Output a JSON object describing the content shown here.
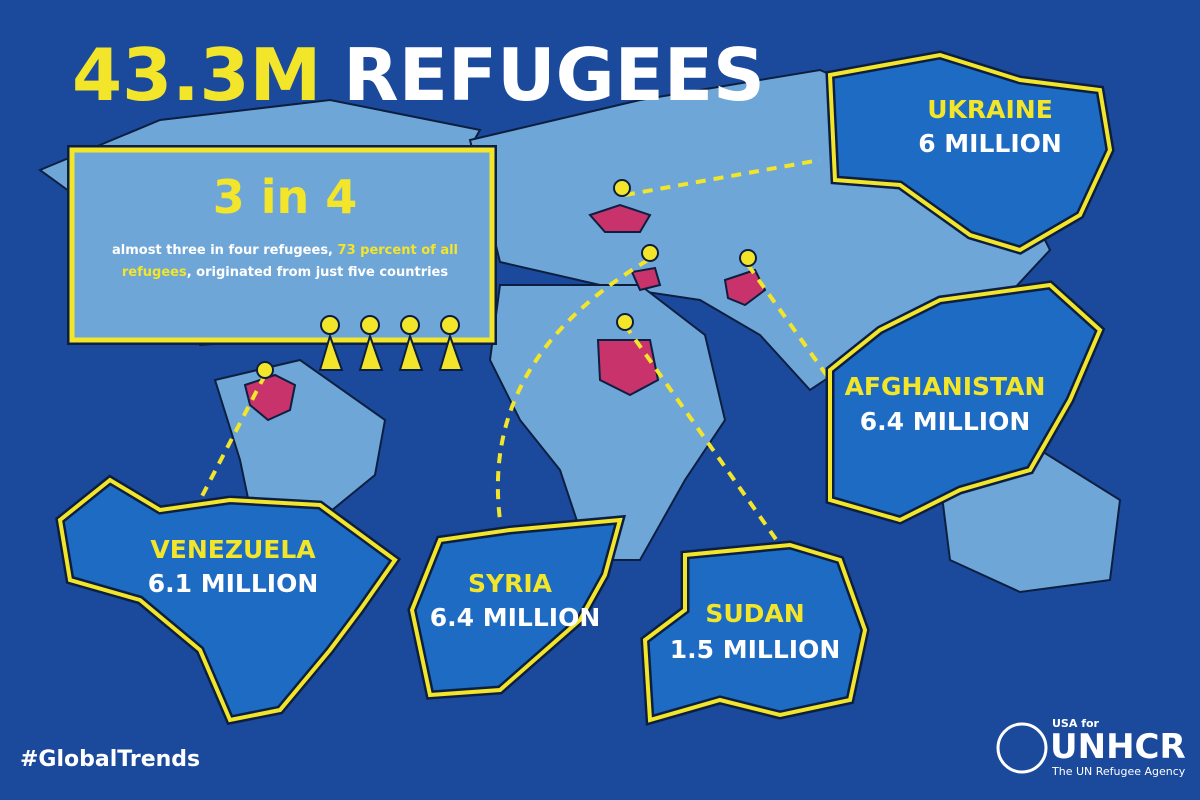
{
  "title": {
    "number": "43.3M",
    "word": "REFUGEES"
  },
  "callout": {
    "headline": "3 in 4",
    "text_before": "almost three in four refugees,",
    "highlight": "73 percent of all refugees",
    "text_after": ", originated from just five countries"
  },
  "countries": [
    {
      "name": "UKRAINE",
      "count": "6 MILLION"
    },
    {
      "name": "AFGHANISTAN",
      "count": "6.4 MILLION"
    },
    {
      "name": "VENEZUELA",
      "count": "6.1 MILLION"
    },
    {
      "name": "SYRIA",
      "count": "6.4 MILLION"
    },
    {
      "name": "SUDAN",
      "count": "1.5 MILLION"
    }
  ],
  "hashtag": "#GlobalTrends",
  "logo": {
    "top": "USA for",
    "name": "UNHCR",
    "tagline": "The UN Refugee Agency"
  }
}
